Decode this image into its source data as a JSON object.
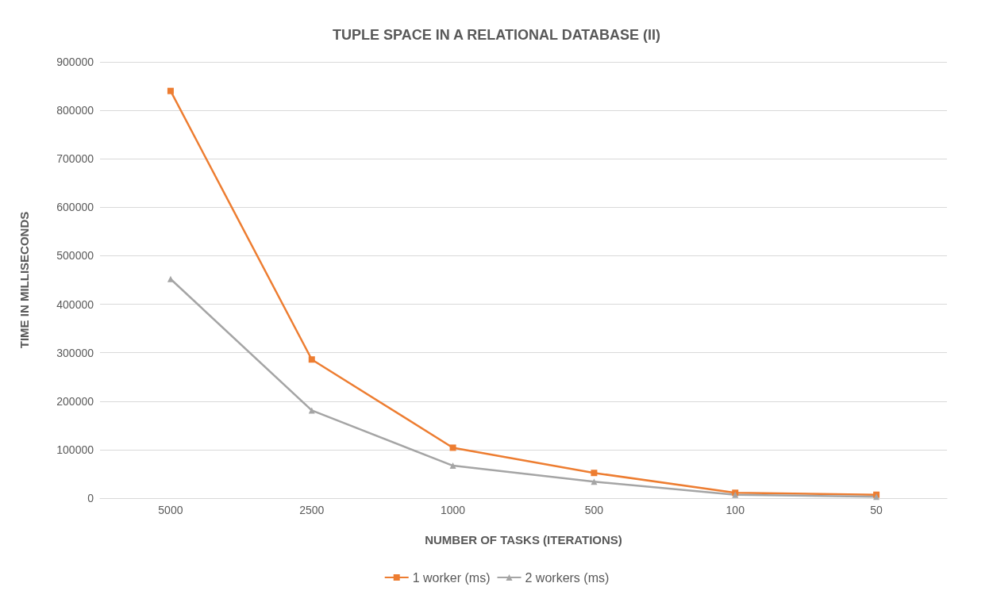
{
  "chart_data": {
    "type": "line",
    "title": "TUPLE SPACE IN A RELATIONAL DATABASE (II)",
    "xlabel": "NUMBER OF TASKS (ITERATIONS)",
    "ylabel": "TIME IN MILLISECONDS",
    "categories": [
      "5000",
      "2500",
      "1000",
      "500",
      "100",
      "50"
    ],
    "series": [
      {
        "name": "1 worker (ms)",
        "color": "#ed7d31",
        "marker": "square",
        "values": [
          840000,
          286000,
          104000,
          52000,
          11000,
          7000
        ]
      },
      {
        "name": "2 workers (ms)",
        "color": "#a5a5a5",
        "marker": "triangle",
        "values": [
          452000,
          181000,
          67000,
          34000,
          7000,
          3000
        ]
      }
    ],
    "ylim": [
      0,
      900000
    ],
    "yticks": [
      0,
      100000,
      200000,
      300000,
      400000,
      500000,
      600000,
      700000,
      800000,
      900000
    ],
    "grid": "y",
    "legend": "bottom",
    "line_style": "solid"
  }
}
